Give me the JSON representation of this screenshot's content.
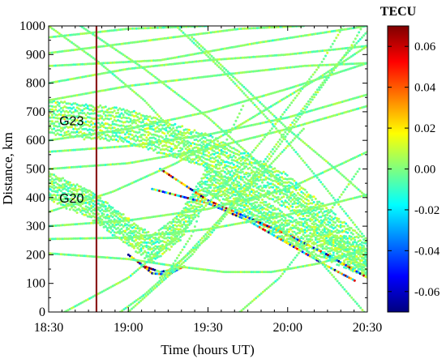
{
  "chart_data": {
    "type": "scatter",
    "xlabel": "Time (hours UT)",
    "ylabel": "Distance, km",
    "x_ticks": [
      "18:30",
      "19:00",
      "19:30",
      "20:00",
      "20:30"
    ],
    "x_range_hours": [
      18.5,
      20.5
    ],
    "y_ticks": [
      0,
      100,
      200,
      300,
      400,
      500,
      600,
      700,
      800,
      900,
      1000
    ],
    "ylim": [
      0,
      1000
    ],
    "marker_time": "18:48",
    "marker_color": "#8b1a1a",
    "annotations": [
      {
        "text": "G23",
        "time": "18:34",
        "distance": 670
      },
      {
        "text": "G20",
        "time": "18:34",
        "distance": 400
      }
    ],
    "colorbar": {
      "title": "TECU",
      "ticks": [
        "0.06",
        "0.04",
        "0.02",
        "0.00",
        "-0.02",
        "-0.04",
        "-0.06"
      ],
      "tick_values": [
        0.06,
        0.04,
        0.02,
        0.0,
        -0.02,
        -0.04,
        -0.06
      ],
      "range": [
        -0.07,
        0.07
      ],
      "colormap": [
        "#00007f",
        "#0000ff",
        "#007fff",
        "#00ffff",
        "#7fff7f",
        "#ffff00",
        "#ff7f00",
        "#ff0000",
        "#7f0000"
      ]
    },
    "series": [
      {
        "band": true,
        "halfwidth": 55,
        "amp": 0.008,
        "pts": [
          [
            18.5,
            680
          ],
          [
            19.0,
            650
          ],
          [
            19.5,
            560
          ],
          [
            20.0,
            420
          ],
          [
            20.5,
            190
          ]
        ]
      },
      {
        "band": true,
        "halfwidth": 45,
        "amp": 0.007,
        "pts": [
          [
            18.5,
            440
          ],
          [
            18.75,
            380
          ],
          [
            19.0,
            280
          ],
          [
            19.15,
            220
          ],
          [
            19.33,
            300
          ],
          [
            19.5,
            460
          ],
          [
            19.75,
            380
          ],
          [
            20.0,
            290
          ],
          [
            20.5,
            170
          ]
        ]
      },
      {
        "band": false,
        "amp": 0.045,
        "pts": [
          [
            19.2,
            500
          ],
          [
            19.5,
            390
          ],
          [
            19.75,
            330
          ],
          [
            20.0,
            270
          ],
          [
            20.25,
            200
          ],
          [
            20.5,
            120
          ]
        ]
      },
      {
        "band": false,
        "amp": 0.045,
        "pts": [
          [
            19.15,
            430
          ],
          [
            19.5,
            380
          ],
          [
            19.75,
            320
          ],
          [
            20.0,
            240
          ],
          [
            20.25,
            160
          ],
          [
            20.42,
            110
          ]
        ]
      },
      {
        "band": false,
        "amp": 0.06,
        "pts": [
          [
            19.0,
            200
          ],
          [
            19.1,
            160
          ],
          [
            19.2,
            140
          ],
          [
            19.3,
            150
          ]
        ]
      },
      {
        "band": false,
        "amp": 0.06,
        "pts": [
          [
            19.05,
            180
          ],
          [
            19.15,
            135
          ],
          [
            19.25,
            130
          ],
          [
            19.35,
            160
          ]
        ]
      },
      {
        "band": false,
        "amp": 0.005,
        "pts": [
          [
            18.5,
            1000
          ],
          [
            18.8,
            880
          ],
          [
            19.1,
            740
          ],
          [
            19.4,
            560
          ],
          [
            19.8,
            360
          ],
          [
            20.2,
            180
          ],
          [
            20.48,
            0
          ]
        ]
      },
      {
        "band": false,
        "amp": 0.005,
        "pts": [
          [
            18.5,
            960
          ],
          [
            19.0,
            990
          ],
          [
            19.5,
            1000
          ]
        ]
      },
      {
        "band": false,
        "amp": 0.005,
        "pts": [
          [
            18.5,
            905
          ],
          [
            19.0,
            940
          ],
          [
            19.7,
            990
          ],
          [
            20.1,
            1000
          ]
        ]
      },
      {
        "band": false,
        "amp": 0.005,
        "pts": [
          [
            18.5,
            860
          ],
          [
            19.2,
            880
          ],
          [
            19.8,
            940
          ],
          [
            20.5,
            1000
          ]
        ]
      },
      {
        "band": false,
        "amp": 0.005,
        "pts": [
          [
            18.5,
            800
          ],
          [
            19.0,
            850
          ],
          [
            19.5,
            880
          ],
          [
            20.0,
            900
          ],
          [
            20.5,
            930
          ]
        ]
      },
      {
        "band": false,
        "amp": 0.005,
        "pts": [
          [
            18.5,
            740
          ],
          [
            19.0,
            790
          ],
          [
            19.6,
            830
          ],
          [
            20.1,
            860
          ],
          [
            20.5,
            870
          ]
        ]
      },
      {
        "band": false,
        "amp": 0.005,
        "pts": [
          [
            18.5,
            205
          ],
          [
            19.0,
            185
          ],
          [
            19.3,
            160
          ],
          [
            19.6,
            140
          ],
          [
            19.9,
            140
          ],
          [
            20.2,
            170
          ],
          [
            20.5,
            220
          ]
        ]
      },
      {
        "band": false,
        "amp": 0.005,
        "pts": [
          [
            18.5,
            300
          ],
          [
            19.0,
            320
          ],
          [
            19.5,
            360
          ],
          [
            20.0,
            430
          ],
          [
            20.5,
            560
          ]
        ]
      },
      {
        "band": false,
        "amp": 0.005,
        "pts": [
          [
            18.5,
            255
          ],
          [
            19.0,
            260
          ],
          [
            19.5,
            290
          ],
          [
            20.0,
            340
          ],
          [
            20.5,
            410
          ]
        ]
      },
      {
        "band": false,
        "amp": 0.005,
        "pts": [
          [
            18.6,
            0
          ],
          [
            19.0,
            120
          ],
          [
            19.3,
            260
          ],
          [
            19.6,
            440
          ],
          [
            19.9,
            640
          ],
          [
            20.2,
            860
          ],
          [
            20.35,
            1000
          ]
        ]
      },
      {
        "band": false,
        "amp": 0.005,
        "pts": [
          [
            19.0,
            0
          ],
          [
            19.4,
            200
          ],
          [
            19.7,
            410
          ],
          [
            20.0,
            640
          ],
          [
            20.3,
            860
          ],
          [
            20.5,
            980
          ]
        ]
      },
      {
        "band": false,
        "amp": 0.005,
        "pts": [
          [
            19.2,
            120
          ],
          [
            19.5,
            260
          ],
          [
            19.8,
            470
          ],
          [
            20.1,
            700
          ],
          [
            20.4,
            930
          ],
          [
            20.47,
            1000
          ]
        ]
      },
      {
        "band": false,
        "amp": 0.005,
        "pts": [
          [
            18.5,
            560
          ],
          [
            19.0,
            580
          ],
          [
            19.5,
            620
          ],
          [
            20.0,
            680
          ],
          [
            20.5,
            760
          ]
        ]
      },
      {
        "band": false,
        "amp": 0.005,
        "pts": [
          [
            18.5,
            600
          ],
          [
            19.0,
            640
          ],
          [
            19.5,
            700
          ],
          [
            20.0,
            780
          ],
          [
            20.5,
            870
          ]
        ]
      },
      {
        "band": false,
        "amp": 0.005,
        "pts": [
          [
            18.5,
            350
          ],
          [
            18.9,
            420
          ],
          [
            19.3,
            520
          ],
          [
            19.6,
            620
          ],
          [
            19.9,
            720
          ],
          [
            20.2,
            820
          ],
          [
            20.5,
            930
          ]
        ]
      },
      {
        "band": false,
        "amp": 0.005,
        "pts": [
          [
            19.25,
            140
          ],
          [
            19.4,
            270
          ],
          [
            19.5,
            430
          ],
          [
            19.6,
            580
          ],
          [
            19.72,
            720
          ]
        ]
      },
      {
        "band": false,
        "amp": 0.005,
        "pts": [
          [
            18.7,
            1000
          ],
          [
            19.1,
            850
          ],
          [
            19.5,
            680
          ],
          [
            19.9,
            480
          ],
          [
            20.3,
            260
          ],
          [
            20.5,
            130
          ]
        ]
      },
      {
        "band": false,
        "amp": 0.005,
        "pts": [
          [
            19.3,
            1000
          ],
          [
            19.6,
            840
          ],
          [
            19.9,
            660
          ],
          [
            20.2,
            460
          ],
          [
            20.5,
            250
          ]
        ]
      },
      {
        "band": false,
        "amp": 0.005,
        "pts": [
          [
            19.4,
            960
          ],
          [
            19.7,
            800
          ],
          [
            20.0,
            640
          ],
          [
            20.3,
            500
          ],
          [
            20.5,
            400
          ]
        ]
      },
      {
        "band": false,
        "amp": 0.005,
        "pts": [
          [
            18.5,
            500
          ],
          [
            19.0,
            520
          ],
          [
            19.5,
            570
          ],
          [
            20.0,
            640
          ],
          [
            20.5,
            720
          ]
        ]
      },
      {
        "band": false,
        "amp": 0.005,
        "pts": [
          [
            18.95,
            0
          ],
          [
            19.1,
            60
          ],
          [
            19.3,
            160
          ],
          [
            19.5,
            280
          ],
          [
            19.8,
            460
          ],
          [
            20.1,
            640
          ]
        ]
      },
      {
        "band": false,
        "amp": 0.005,
        "pts": [
          [
            19.7,
            0
          ],
          [
            19.95,
            120
          ],
          [
            20.2,
            300
          ],
          [
            20.45,
            500
          ]
        ]
      }
    ]
  }
}
